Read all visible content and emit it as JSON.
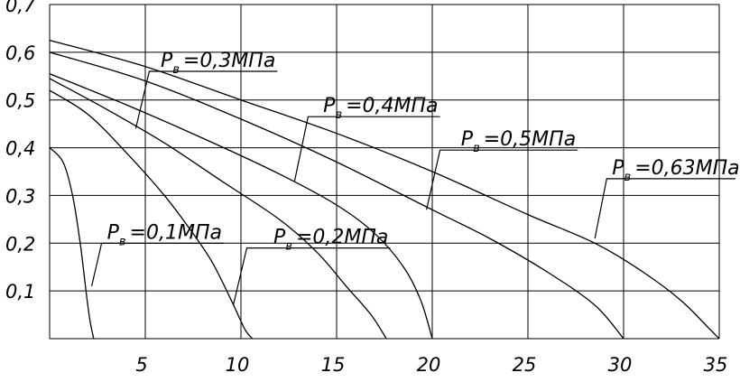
{
  "chart_data": {
    "type": "line",
    "title": "",
    "xlabel": "",
    "ylabel": "",
    "xlim": [
      0,
      35
    ],
    "ylim": [
      0,
      0.7
    ],
    "grid": true,
    "x_ticks": [
      {
        "value": 5,
        "label": "5"
      },
      {
        "value": 10,
        "label": "10"
      },
      {
        "value": 15,
        "label": "15"
      },
      {
        "value": 20,
        "label": "20"
      },
      {
        "value": 25,
        "label": "25"
      },
      {
        "value": 30,
        "label": "30"
      },
      {
        "value": 35,
        "label": "35"
      }
    ],
    "y_ticks": [
      {
        "value": 0.1,
        "label": "0,1"
      },
      {
        "value": 0.2,
        "label": "0,2"
      },
      {
        "value": 0.3,
        "label": "0,3"
      },
      {
        "value": 0.4,
        "label": "0,4"
      },
      {
        "value": 0.5,
        "label": "0,5"
      },
      {
        "value": 0.6,
        "label": "0,6"
      },
      {
        "value": 0.7,
        "label": "0,7"
      }
    ],
    "series": [
      {
        "name": "0,1",
        "label_main": "P",
        "label_sub": "в",
        "label_value": "=0,1МПа",
        "label_anchor": {
          "x": 3.0,
          "y": 0.2
        },
        "leader_point": {
          "x": 2.2,
          "y": 0.11
        },
        "points": [
          [
            0,
            0.4
          ],
          [
            0.7,
            0.37
          ],
          [
            1.2,
            0.3
          ],
          [
            1.6,
            0.2
          ],
          [
            1.9,
            0.1
          ],
          [
            2.1,
            0.04
          ],
          [
            2.3,
            0
          ]
        ]
      },
      {
        "name": "0,2",
        "label_main": "P",
        "label_sub": "в",
        "label_value": "=0,2МПа",
        "label_anchor": {
          "x": 11.7,
          "y": 0.19
        },
        "leader_point": {
          "x": 9.6,
          "y": 0.07
        },
        "points": [
          [
            0,
            0.52
          ],
          [
            2,
            0.47
          ],
          [
            4,
            0.39
          ],
          [
            6,
            0.3
          ],
          [
            7.5,
            0.22
          ],
          [
            8.5,
            0.16
          ],
          [
            9.5,
            0.08
          ],
          [
            10.2,
            0.02
          ],
          [
            10.6,
            0
          ]
        ]
      },
      {
        "name": "0,3",
        "label_main": "P",
        "label_sub": "в",
        "label_value": "=0,3МПа",
        "label_anchor": {
          "x": 5.8,
          "y": 0.56
        },
        "leader_point": {
          "x": 4.5,
          "y": 0.44
        },
        "points": [
          [
            0,
            0.545
          ],
          [
            3,
            0.48
          ],
          [
            6,
            0.41
          ],
          [
            9,
            0.33
          ],
          [
            12,
            0.25
          ],
          [
            14,
            0.18
          ],
          [
            15.5,
            0.11
          ],
          [
            16.8,
            0.05
          ],
          [
            17.6,
            0
          ]
        ]
      },
      {
        "name": "0,4",
        "label_main": "P",
        "label_sub": "в",
        "label_value": "=0,4МПа",
        "label_anchor": {
          "x": 14.3,
          "y": 0.465
        },
        "leader_point": {
          "x": 12.8,
          "y": 0.33
        },
        "points": [
          [
            0,
            0.555
          ],
          [
            4,
            0.49
          ],
          [
            8,
            0.42
          ],
          [
            12,
            0.345
          ],
          [
            15,
            0.28
          ],
          [
            17,
            0.22
          ],
          [
            18.5,
            0.15
          ],
          [
            19.4,
            0.08
          ],
          [
            20,
            0
          ]
        ]
      },
      {
        "name": "0,5",
        "label_main": "P",
        "label_sub": "в",
        "label_value": "=0,5МПа",
        "label_anchor": {
          "x": 21.5,
          "y": 0.395
        },
        "leader_point": {
          "x": 19.7,
          "y": 0.27
        },
        "points": [
          [
            0,
            0.6
          ],
          [
            5,
            0.54
          ],
          [
            10,
            0.46
          ],
          [
            15,
            0.37
          ],
          [
            20,
            0.27
          ],
          [
            23,
            0.21
          ],
          [
            26,
            0.14
          ],
          [
            28.5,
            0.07
          ],
          [
            30,
            0
          ]
        ]
      },
      {
        "name": "0,63",
        "label_main": "P",
        "label_sub": "в",
        "label_value": "=0,63МПа",
        "label_anchor": {
          "x": 29.4,
          "y": 0.335
        },
        "leader_point": {
          "x": 28.5,
          "y": 0.21
        },
        "points": [
          [
            0,
            0.625
          ],
          [
            5,
            0.57
          ],
          [
            10,
            0.5
          ],
          [
            15,
            0.43
          ],
          [
            20,
            0.35
          ],
          [
            25,
            0.26
          ],
          [
            28.5,
            0.2
          ],
          [
            31,
            0.14
          ],
          [
            33,
            0.08
          ],
          [
            34.5,
            0.02
          ],
          [
            35,
            0
          ]
        ]
      }
    ]
  }
}
